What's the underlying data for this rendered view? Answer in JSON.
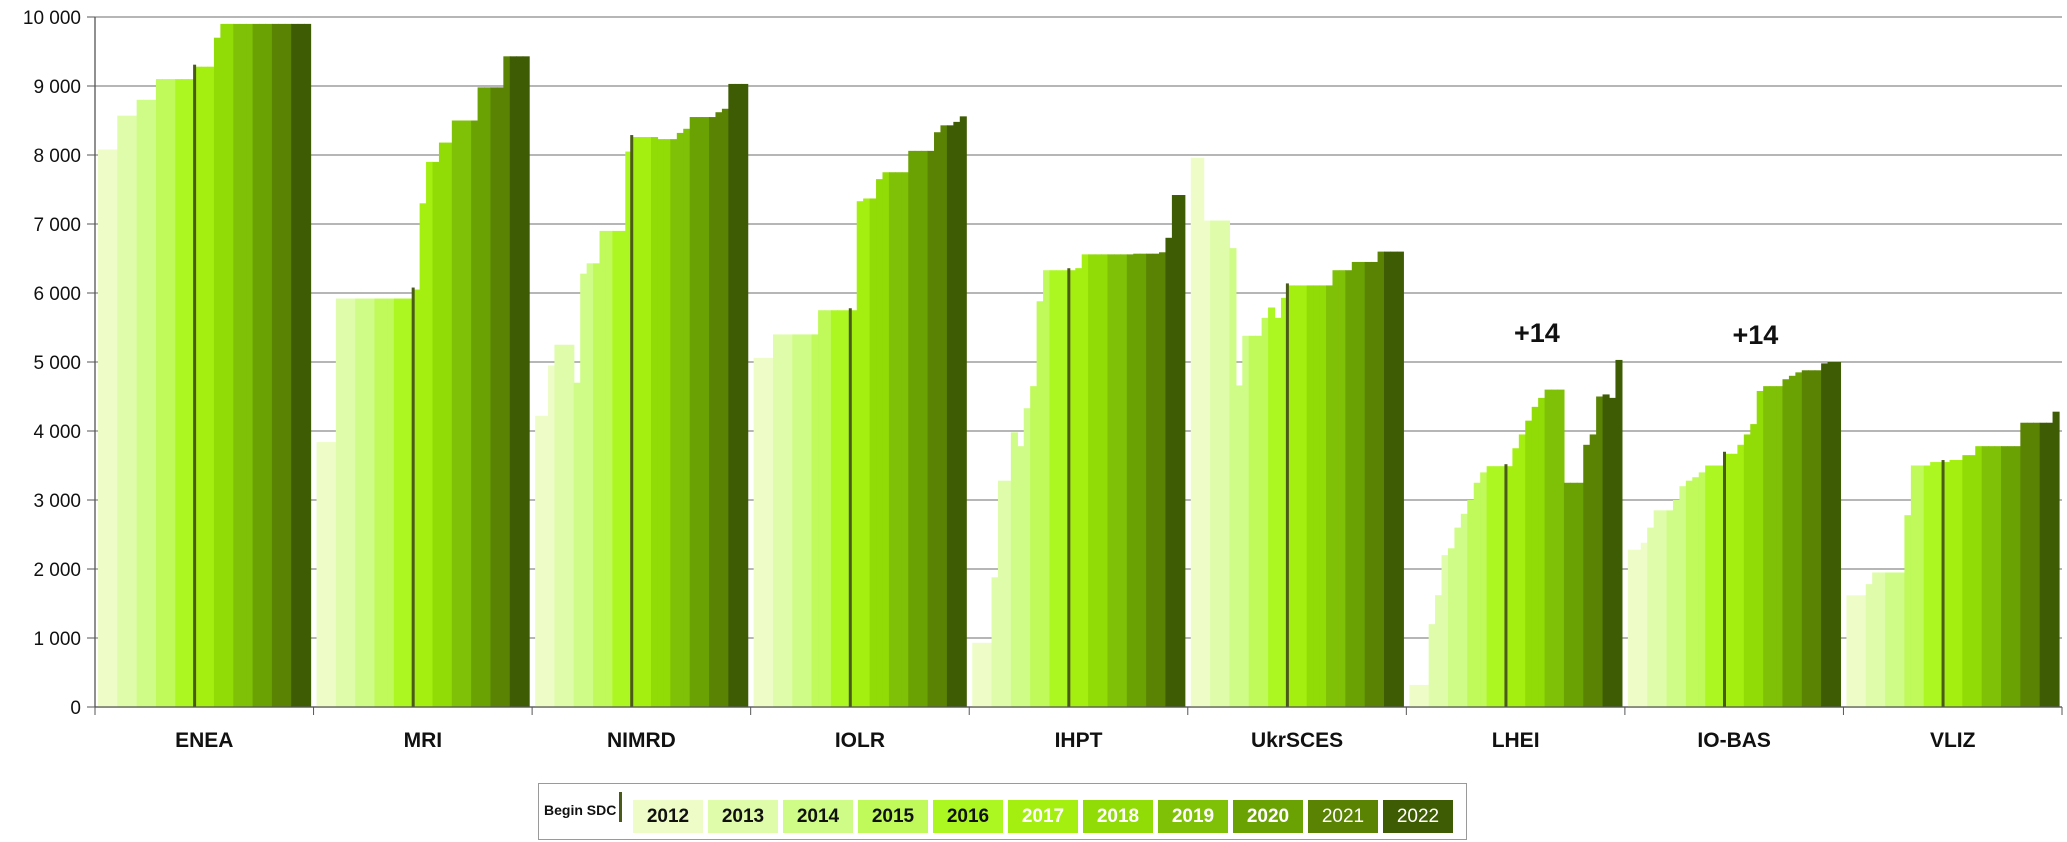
{
  "chart_data": {
    "type": "bar",
    "title": "",
    "xlabel": "",
    "ylabel": "",
    "ylim": [
      0,
      10000
    ],
    "yticks": [
      0,
      1000,
      2000,
      3000,
      4000,
      5000,
      6000,
      7000,
      8000,
      9000,
      10000
    ],
    "ytick_labels": [
      "0",
      "1 000",
      "2 000",
      "3 000",
      "4 000",
      "5 000",
      "6 000",
      "7 000",
      "8 000",
      "9 000",
      "10 000"
    ],
    "grid": true,
    "legend_position": "bottom",
    "legend_begin_label": "Begin SDC",
    "series": [
      {
        "name": "2012",
        "color": "#eefdc8"
      },
      {
        "name": "2013",
        "color": "#defcaa"
      },
      {
        "name": "2014",
        "color": "#cffc86"
      },
      {
        "name": "2015",
        "color": "#bff95a"
      },
      {
        "name": "2016",
        "color": "#acf722"
      },
      {
        "name": "2017",
        "color": "#a4ef10"
      },
      {
        "name": "2018",
        "color": "#91db06"
      },
      {
        "name": "2019",
        "color": "#7fc106"
      },
      {
        "name": "2020",
        "color": "#6aa204"
      },
      {
        "name": "2021",
        "color": "#5a8304"
      },
      {
        "name": "2022",
        "color": "#3e5c04"
      }
    ],
    "categories": [
      {
        "name": "ENEA",
        "annotation": "",
        "values": [
          8080,
          8080,
          8080,
          8570,
          8570,
          8570,
          8800,
          8800,
          8800,
          9100,
          9100,
          9100,
          9100,
          9100,
          9100,
          9280,
          9280,
          9280,
          9700,
          9900,
          9900,
          9900,
          9900,
          9900,
          9900,
          9900,
          9900,
          9900,
          9900,
          9900,
          9900,
          9900,
          9900
        ],
        "begin_index": 15
      },
      {
        "name": "MRI",
        "annotation": "",
        "values": [
          3840,
          3840,
          3840,
          5920,
          5920,
          5920,
          5920,
          5920,
          5920,
          5920,
          5920,
          5920,
          5920,
          5920,
          5920,
          6050,
          7300,
          7900,
          7900,
          8180,
          8180,
          8500,
          8500,
          8500,
          8500,
          8980,
          8980,
          8980,
          8980,
          9430,
          9430,
          9430,
          9430
        ],
        "begin_index": 15
      },
      {
        "name": "NIMRD",
        "annotation": "",
        "values": [
          4220,
          4220,
          4950,
          5250,
          5250,
          5250,
          4700,
          6280,
          6430,
          6430,
          6900,
          6900,
          6900,
          6900,
          8050,
          8260,
          8260,
          8260,
          8260,
          8230,
          8230,
          8230,
          8320,
          8380,
          8550,
          8550,
          8550,
          8550,
          8620,
          8670,
          9030,
          9030,
          9030
        ],
        "begin_index": 15
      },
      {
        "name": "IOLR",
        "annotation": "",
        "values": [
          5060,
          5060,
          5060,
          5400,
          5400,
          5400,
          5400,
          5400,
          5400,
          5400,
          5750,
          5750,
          5750,
          5750,
          5750,
          5750,
          7330,
          7370,
          7370,
          7650,
          7750,
          7750,
          7750,
          7750,
          8060,
          8060,
          8060,
          8060,
          8330,
          8430,
          8430,
          8480,
          8560
        ],
        "begin_index": 15
      },
      {
        "name": "IHPT",
        "annotation": "",
        "values": [
          930,
          930,
          930,
          1880,
          3280,
          3280,
          3980,
          3780,
          4330,
          4650,
          5880,
          6330,
          6330,
          6330,
          6330,
          6330,
          6360,
          6560,
          6560,
          6560,
          6560,
          6560,
          6560,
          6560,
          6560,
          6570,
          6570,
          6570,
          6570,
          6590,
          6800,
          7420,
          7420
        ],
        "begin_index": 15
      },
      {
        "name": "UkrSCES",
        "annotation": "",
        "values": [
          7960,
          7960,
          7050,
          7050,
          7050,
          7050,
          6650,
          4660,
          5380,
          5380,
          5380,
          5640,
          5790,
          5640,
          5930,
          6110,
          6110,
          6110,
          6110,
          6110,
          6110,
          6110,
          6330,
          6330,
          6330,
          6450,
          6450,
          6450,
          6450,
          6600,
          6600,
          6600,
          6600
        ],
        "begin_index": 15
      },
      {
        "name": "LHEI",
        "annotation": "+14",
        "values": [
          320,
          320,
          320,
          1200,
          1620,
          2200,
          2300,
          2600,
          2800,
          3000,
          3250,
          3400,
          3490,
          3490,
          3490,
          3490,
          3750,
          3950,
          4150,
          4350,
          4480,
          4600,
          4600,
          4600,
          3250,
          3250,
          3250,
          3800,
          3950,
          4500,
          4530,
          4480,
          5030
        ],
        "begin_index": 15
      },
      {
        "name": "IO-BAS",
        "annotation": "+14",
        "values": [
          2280,
          2280,
          2380,
          2600,
          2850,
          2850,
          2850,
          3000,
          3200,
          3280,
          3330,
          3400,
          3500,
          3500,
          3500,
          3670,
          3670,
          3800,
          3950,
          4100,
          4580,
          4650,
          4650,
          4650,
          4750,
          4800,
          4850,
          4880,
          4880,
          4880,
          4980,
          5000,
          5000
        ],
        "begin_index": 15
      },
      {
        "name": "VLIZ",
        "annotation": "",
        "values": [
          1620,
          1620,
          1620,
          1780,
          1950,
          1950,
          1950,
          1950,
          1950,
          2780,
          3500,
          3500,
          3500,
          3550,
          3550,
          3550,
          3580,
          3580,
          3650,
          3650,
          3780,
          3780,
          3780,
          3780,
          3780,
          3780,
          3780,
          4120,
          4120,
          4120,
          4120,
          4120,
          4280
        ],
        "begin_index": 15
      }
    ]
  }
}
